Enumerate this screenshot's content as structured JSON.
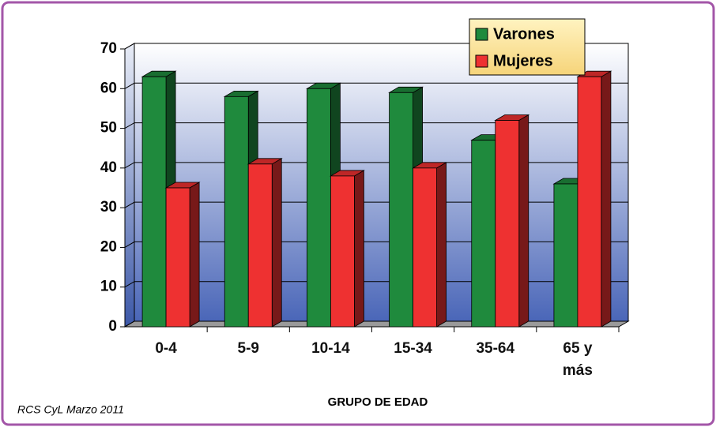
{
  "chart_data": {
    "type": "bar3d",
    "categories": [
      "0-4",
      "5-9",
      "10-14",
      "15-34",
      "35-64",
      "65 y más"
    ],
    "series": [
      {
        "name": "Varones",
        "color": "#1f8a3d",
        "values": [
          63,
          58,
          60,
          59,
          47,
          36
        ]
      },
      {
        "name": "Mujeres",
        "color": "#ee3131",
        "values": [
          35,
          41,
          38,
          40,
          52,
          63
        ]
      }
    ],
    "ylim": [
      0,
      70
    ],
    "yticks": [
      0,
      10,
      20,
      30,
      40,
      50,
      60,
      70
    ],
    "grid": true,
    "legend": "upper right",
    "xlabel": "GRUPO DE EDAD",
    "source": "RCS CyL Marzo 2011"
  }
}
